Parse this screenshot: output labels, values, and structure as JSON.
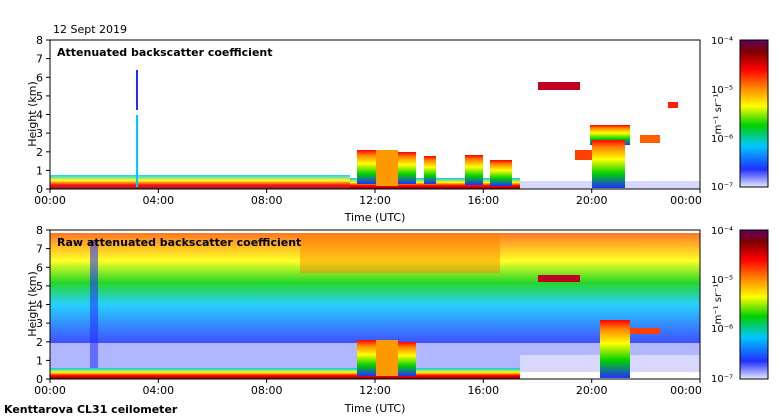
{
  "date_label": "12 Sept 2019",
  "footer_label": "Kenttarova CL31 ceilometer",
  "chart_data": [
    {
      "type": "heatmap",
      "title": "Attenuated backscatter coefficient",
      "xlabel": "Time (UTC)",
      "ylabel": "Height (km)",
      "x_ticks": [
        "00:00",
        "04:00",
        "08:00",
        "12:00",
        "16:00",
        "20:00",
        "00:00"
      ],
      "y_ticks": [
        "0",
        "1",
        "2",
        "3",
        "4",
        "5",
        "6",
        "7",
        "8"
      ],
      "xlim_hours": [
        0,
        24
      ],
      "ylim_km": [
        0,
        8
      ],
      "colorbar": {
        "unit": "m⁻¹ sr⁻¹",
        "scale": "log",
        "tick_labels": [
          "10⁻⁴",
          "10⁻⁵",
          "10⁻⁶",
          "10⁻⁷"
        ],
        "range": [
          1e-07,
          0.0001
        ]
      }
    },
    {
      "type": "heatmap",
      "title": "Raw attenuated backscatter coefficient",
      "xlabel": "Time (UTC)",
      "ylabel": "Height (km)",
      "x_ticks": [
        "00:00",
        "04:00",
        "08:00",
        "12:00",
        "16:00",
        "20:00",
        "00:00"
      ],
      "y_ticks": [
        "0",
        "1",
        "2",
        "3",
        "4",
        "5",
        "6",
        "7",
        "8"
      ],
      "xlim_hours": [
        0,
        24
      ],
      "ylim_km": [
        0,
        8
      ],
      "colorbar": {
        "unit": "m⁻¹ sr⁻¹",
        "scale": "log",
        "tick_labels": [
          "10⁻⁴",
          "10⁻⁵",
          "10⁻⁶",
          "10⁻⁷"
        ],
        "range": [
          1e-07,
          0.0001
        ]
      }
    }
  ],
  "colors": {
    "scale": [
      "#e8e8ff",
      "#2030ff",
      "#00c8ff",
      "#00d000",
      "#ffff00",
      "#ff8000",
      "#ff0000",
      "#800000",
      "#600060"
    ]
  }
}
